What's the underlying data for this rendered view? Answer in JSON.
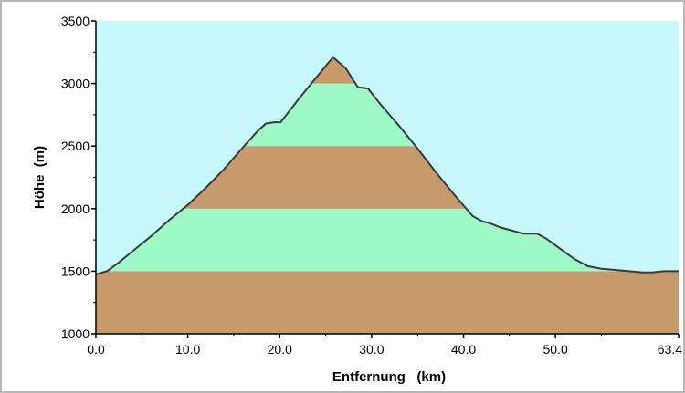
{
  "colors": {
    "sky": "#c6f7fb",
    "band_brown": "#c79a6b",
    "band_green": "#9dfac6",
    "outline": "#3a3a3a",
    "axis": "#000000"
  },
  "chart_data": {
    "type": "area",
    "title": "",
    "xlabel": "Entfernung   (km)",
    "ylabel": "Höhe  (m)",
    "xlim": [
      0,
      63.4
    ],
    "ylim": [
      1000,
      3500
    ],
    "x_ticks": [
      0,
      10,
      20,
      30,
      40,
      50,
      63.4
    ],
    "x_tick_labels": [
      "0.0",
      "10.0",
      "20.0",
      "30.0",
      "40.0",
      "50.0",
      "63.4"
    ],
    "y_ticks": [
      1000,
      1500,
      2000,
      2500,
      3000,
      3500
    ],
    "y_tick_labels": [
      "1000",
      "1500",
      "2000",
      "2500",
      "3000",
      "3500"
    ],
    "bands": [
      {
        "from": 1000,
        "to": 1500,
        "color": "brown"
      },
      {
        "from": 1500,
        "to": 2000,
        "color": "green"
      },
      {
        "from": 2000,
        "to": 2500,
        "color": "brown"
      },
      {
        "from": 2500,
        "to": 3000,
        "color": "green"
      },
      {
        "from": 3000,
        "to": 3500,
        "color": "brown"
      }
    ],
    "x": [
      0,
      1.2,
      2.5,
      4,
      6,
      8,
      10,
      12,
      14,
      16,
      17.6,
      18.5,
      19.4,
      20.1,
      22,
      24,
      25.8,
      27.2,
      28.5,
      29.6,
      31,
      33,
      35,
      37,
      39,
      41,
      42,
      43,
      44,
      45,
      46.5,
      48,
      49,
      50.5,
      52,
      53.5,
      55,
      56.5,
      58,
      59.5,
      60.5,
      61.8,
      63.4
    ],
    "y": [
      1475,
      1500,
      1570,
      1660,
      1780,
      1910,
      2030,
      2170,
      2320,
      2490,
      2620,
      2680,
      2690,
      2690,
      2870,
      3050,
      3210,
      3120,
      2970,
      2960,
      2830,
      2660,
      2480,
      2290,
      2110,
      1940,
      1900,
      1880,
      1850,
      1830,
      1800,
      1800,
      1760,
      1680,
      1600,
      1540,
      1520,
      1510,
      1500,
      1490,
      1490,
      1500,
      1500
    ]
  }
}
